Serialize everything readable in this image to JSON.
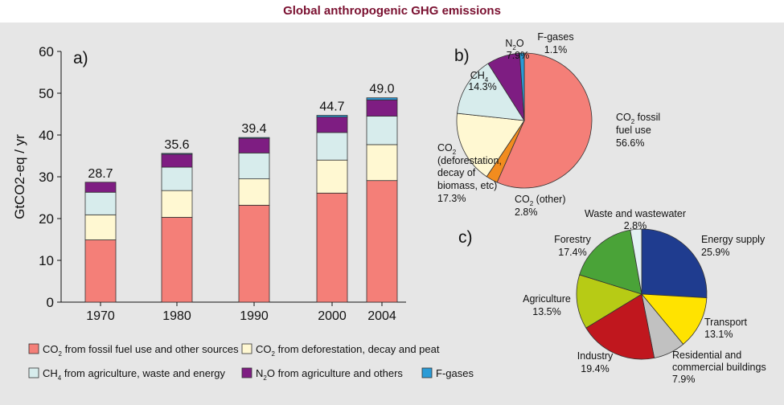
{
  "title": "Global anthropogenic GHG emissions",
  "colors": {
    "co2_fossil": "#f47f78",
    "co2_defor": "#fff8d2",
    "ch4": "#d7ecec",
    "n2o": "#7e1d82",
    "fgases": "#2a9bd6",
    "energy": "#1f3c8f",
    "transport": "#ffe300",
    "residential": "#c1c1c1",
    "industry": "#c0171e",
    "agriculture": "#b7cb15",
    "forestry": "#4aa338",
    "waste": "#e3f1f3"
  },
  "chart_data": [
    {
      "type": "bar",
      "panel_label": "a)",
      "ylabel": "GtCO2-eq / yr",
      "ylim": [
        0,
        60
      ],
      "yticks": [
        0,
        10,
        20,
        30,
        40,
        50,
        60
      ],
      "categories": [
        "1970",
        "1980",
        "1990",
        "2000",
        "2004"
      ],
      "totals": [
        "28.7",
        "35.6",
        "39.4",
        "44.7",
        "49.0"
      ],
      "series": [
        {
          "name": "CO2 from fossil fuel use and other sources",
          "legend_main": "CO",
          "legend_sub": "2",
          "legend_rest": " from fossil fuel use and other sources",
          "values": [
            14.9,
            20.3,
            23.2,
            26.1,
            29.1
          ]
        },
        {
          "name": "CO2 from deforestation, decay and peat",
          "legend_main": "CO",
          "legend_sub": "2",
          "legend_rest": " from deforestation, decay and peat",
          "values": [
            6.0,
            6.4,
            6.3,
            7.9,
            8.6
          ]
        },
        {
          "name": "CH4 from agriculture, waste and energy",
          "legend_main": "CH",
          "legend_sub": "4",
          "legend_rest": " from agriculture, waste and energy",
          "values": [
            5.4,
            5.6,
            6.2,
            6.6,
            6.8
          ]
        },
        {
          "name": "N2O from agriculture and others",
          "legend_main": "N",
          "legend_sub": "2",
          "legend_rest": "O from agriculture and others",
          "values": [
            2.4,
            3.1,
            3.5,
            3.7,
            3.9
          ]
        },
        {
          "name": "F-gases",
          "legend_main": "F-gases",
          "legend_sub": "",
          "legend_rest": "",
          "values": [
            0.0,
            0.2,
            0.2,
            0.4,
            0.5
          ]
        }
      ]
    },
    {
      "type": "pie",
      "panel_label": "b)",
      "slices": [
        {
          "main": "CO",
          "sub": "2",
          "rest": " fossil",
          "line2": "fuel use",
          "value": 56.6,
          "pct": "56.6%"
        },
        {
          "main": "CO",
          "sub": "2",
          "rest": " (other)",
          "line2": "",
          "value": 2.8,
          "pct": "2.8%"
        },
        {
          "main": "CO",
          "sub": "2",
          "rest": "",
          "line2": "(deforestation,",
          "line3": "decay of",
          "line4": "biomass, etc)",
          "value": 17.3,
          "pct": "17.3%"
        },
        {
          "main": "CH",
          "sub": "4",
          "rest": "",
          "line2": "",
          "value": 14.3,
          "pct": "14.3%"
        },
        {
          "main": "N",
          "sub": "2",
          "rest": "O",
          "line2": "",
          "value": 7.9,
          "pct": "7.9%"
        },
        {
          "main": "F-gases",
          "sub": "",
          "rest": "",
          "line2": "",
          "value": 1.1,
          "pct": "1.1%"
        }
      ]
    },
    {
      "type": "pie",
      "panel_label": "c)",
      "slices": [
        {
          "label": "Energy supply",
          "value": 25.9,
          "pct": "25.9%"
        },
        {
          "label": "Transport",
          "value": 13.1,
          "pct": "13.1%"
        },
        {
          "label": "Residential and",
          "label2": "commercial buildings",
          "value": 7.9,
          "pct": "7.9%"
        },
        {
          "label": "Industry",
          "value": 19.4,
          "pct": "19.4%"
        },
        {
          "label": "Agriculture",
          "value": 13.5,
          "pct": "13.5%"
        },
        {
          "label": "Forestry",
          "value": 17.4,
          "pct": "17.4%"
        },
        {
          "label": "Waste and wastewater",
          "value": 2.8,
          "pct": "2.8%"
        }
      ]
    }
  ]
}
